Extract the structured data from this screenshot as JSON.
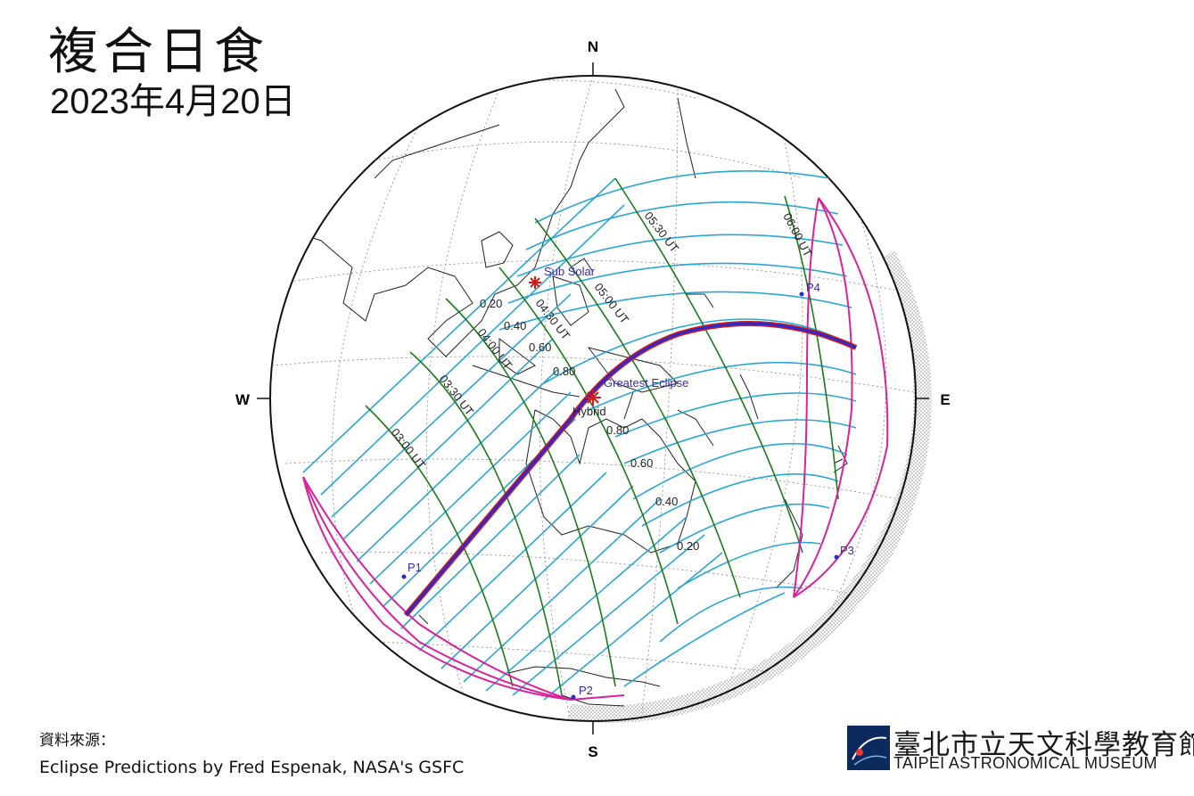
{
  "title": "複合日食",
  "date": "2023年4月20日",
  "compass": {
    "north": "N",
    "south": "S",
    "west": "W",
    "east": "E"
  },
  "source": {
    "label": "資料來源：",
    "text": "Eclipse Predictions by Fred Espenak, NASA's GSFC"
  },
  "museum": {
    "name_cn": "臺北市立天文科學教育館",
    "name_en": "TAIPEI ASTRONOMICAL MUSEUM"
  },
  "map_labels": {
    "sub_solar": "Sub Solar",
    "greatest_eclipse": "Greatest Eclipse",
    "hybrid": "Hybrid",
    "p1": "P1",
    "p2": "P2",
    "p3": "P3",
    "p4": "P4"
  },
  "magnitude_labels_upper": [
    "0.20",
    "0.40",
    "0.60",
    "0.80"
  ],
  "magnitude_labels_lower": [
    "0.80",
    "0.60",
    "0.40",
    "0.20"
  ],
  "time_labels": [
    "03:00 UT",
    "03:30 UT",
    "04:00 UT",
    "04:30 UT",
    "05:00 UT",
    "05:30 UT",
    "06:00 UT"
  ],
  "colors": {
    "magnitude_lines": "#2aa6d6",
    "time_lines": "#1c7a1c",
    "penumbra_limits": "#d8239a",
    "central_path_outer": "#d11a1a",
    "central_path_inner": "#2a2ad0",
    "labels": "#3a2aa8",
    "markers": "#d11a1a"
  }
}
